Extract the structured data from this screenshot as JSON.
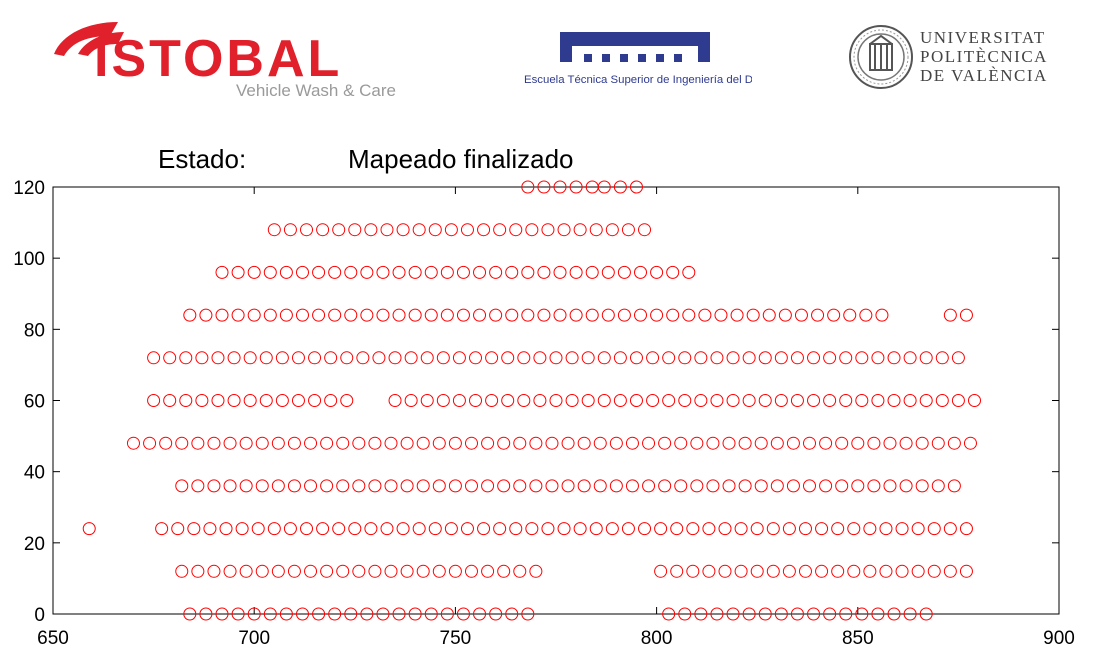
{
  "logos": {
    "istobal": {
      "brand": "ISTOBAL",
      "tagline": "Vehicle Wash & Care",
      "color": "#e0202b",
      "tagline_color": "#9a9a9a"
    },
    "etsid": {
      "caption": "Escuela Técnica Superior de Ingeniería del Diseño",
      "color": "#2f3b8f"
    },
    "upv": {
      "lines": [
        "UNIVERSITAT",
        "POLITÈCNICA",
        "DE VALÈNCIA"
      ],
      "color": "#444444"
    }
  },
  "status": {
    "label": "Estado:",
    "value": "Mapeado finalizado"
  },
  "chart_data": {
    "type": "scatter",
    "title": "",
    "xlabel": "",
    "ylabel": "",
    "xlim": [
      650,
      900
    ],
    "ylim": [
      0,
      120
    ],
    "xticks": [
      650,
      700,
      750,
      800,
      850,
      900
    ],
    "yticks": [
      0,
      20,
      40,
      60,
      80,
      100,
      120
    ],
    "marker": "open-circle",
    "marker_color": "#ff0000",
    "grid": false,
    "rows": [
      {
        "y": 120,
        "x_min": 768,
        "x_max": 797,
        "segments": [
          [
            768,
            784
          ],
          [
            787,
            797
          ]
        ]
      },
      {
        "y": 108,
        "x_min": 705,
        "x_max": 798,
        "segments": [
          [
            705,
            798
          ]
        ]
      },
      {
        "y": 96,
        "x_min": 692,
        "x_max": 809,
        "segments": [
          [
            692,
            809
          ]
        ]
      },
      {
        "y": 84,
        "x_min": 684,
        "x_max": 877,
        "segments": [
          [
            684,
            857
          ],
          [
            873,
            877
          ]
        ]
      },
      {
        "y": 72,
        "x_min": 675,
        "x_max": 877,
        "segments": [
          [
            675,
            877
          ]
        ]
      },
      {
        "y": 60,
        "x_min": 675,
        "x_max": 882,
        "segments": [
          [
            675,
            723
          ],
          [
            735,
            882
          ]
        ]
      },
      {
        "y": 48,
        "x_min": 670,
        "x_max": 879,
        "segments": [
          [
            670,
            879
          ]
        ]
      },
      {
        "y": 36,
        "x_min": 682,
        "x_max": 877,
        "segments": [
          [
            682,
            877
          ]
        ]
      },
      {
        "y": 24,
        "x_min": 659,
        "x_max": 877,
        "segments": [
          [
            659,
            659
          ],
          [
            677,
            877
          ]
        ]
      },
      {
        "y": 12,
        "x_min": 682,
        "x_max": 877,
        "segments": [
          [
            682,
            772
          ],
          [
            801,
            877
          ]
        ]
      },
      {
        "y": 0,
        "x_min": 684,
        "x_max": 869,
        "segments": [
          [
            684,
            769
          ],
          [
            803,
            869
          ]
        ]
      }
    ],
    "point_spacing": 4
  }
}
